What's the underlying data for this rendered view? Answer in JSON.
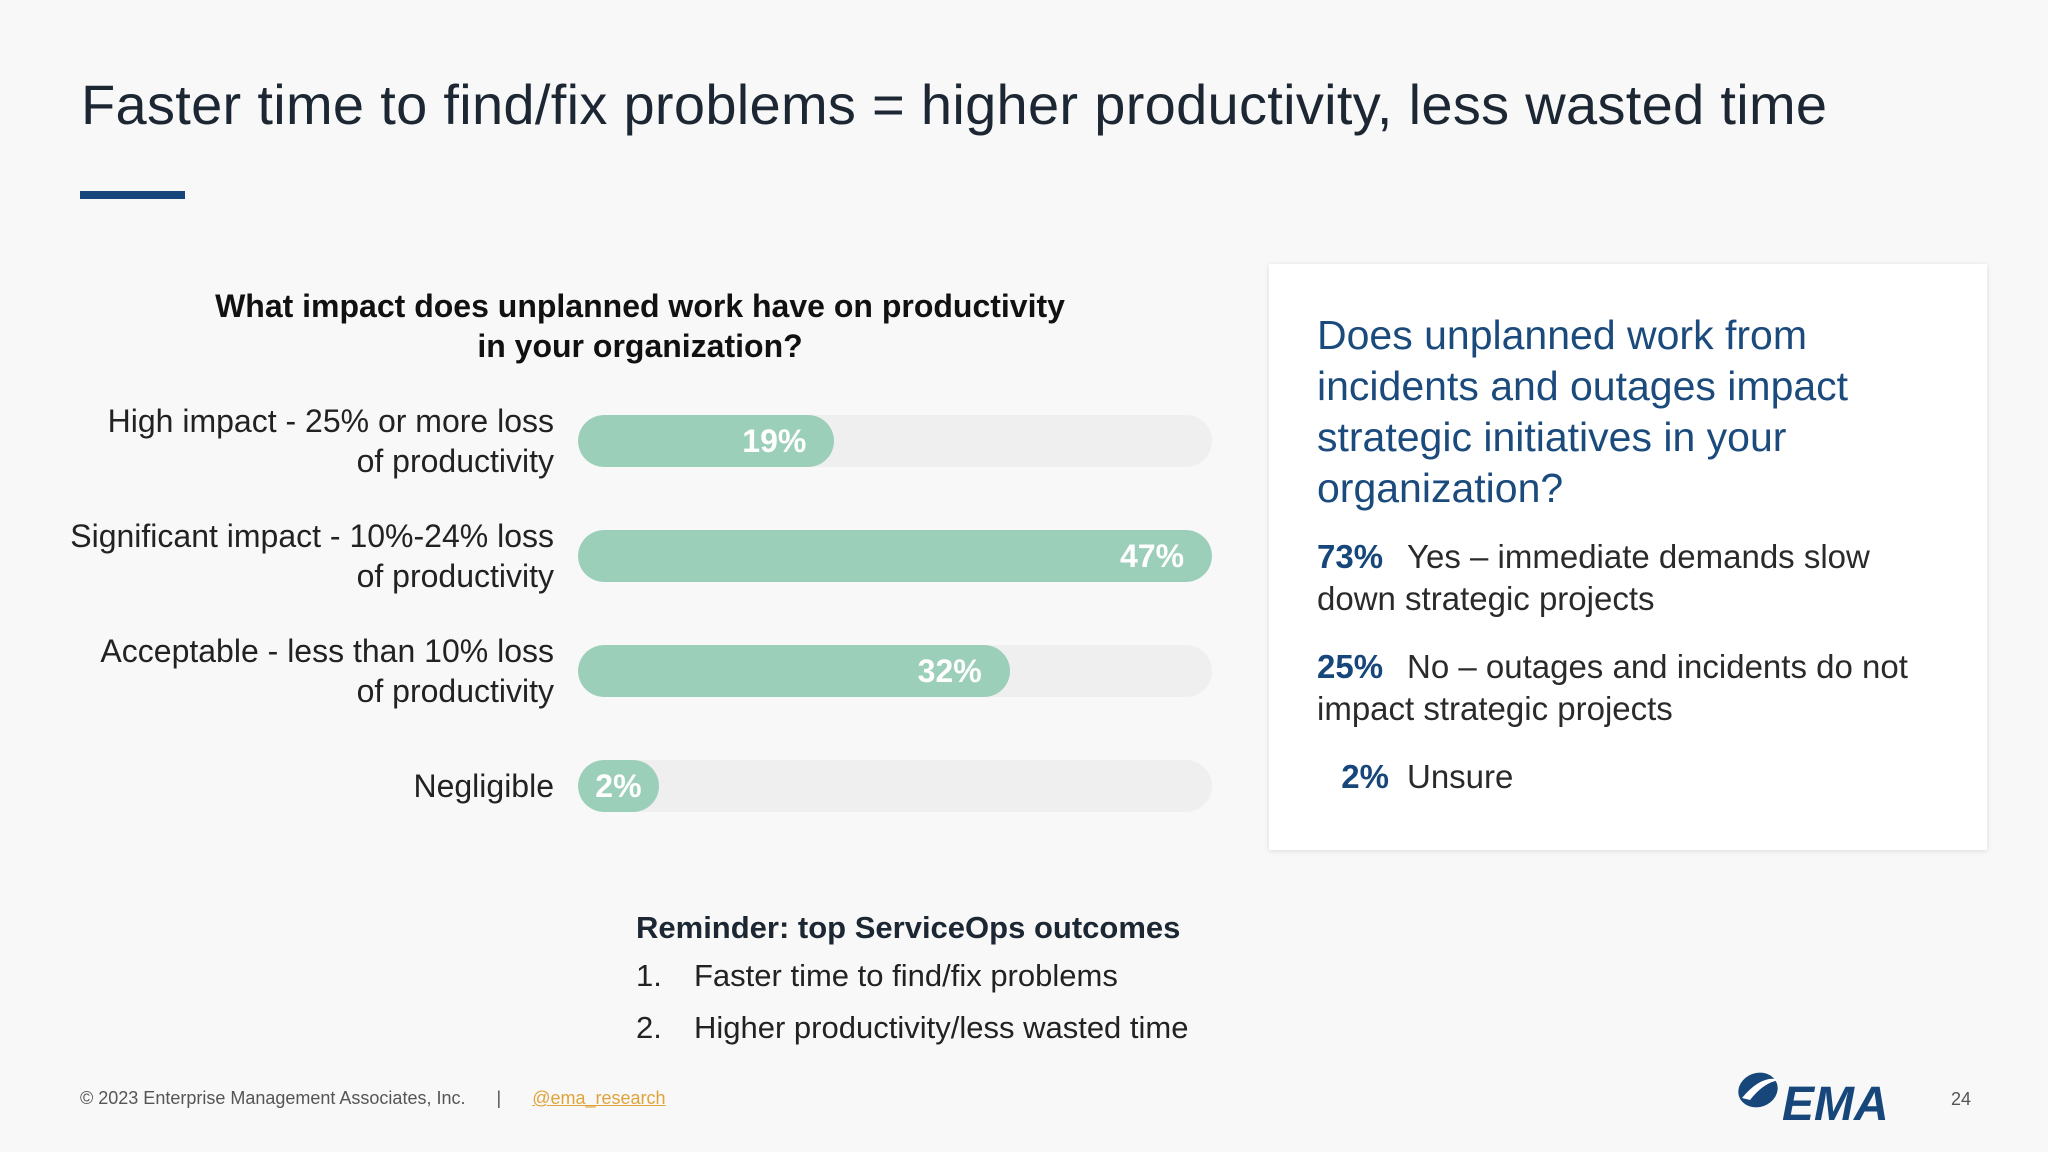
{
  "slide": {
    "title": "Faster time to find/fix problems = higher productivity, less wasted time"
  },
  "chart_data": {
    "type": "bar",
    "orientation": "horizontal",
    "title": "What impact does unplanned work have on productivity in your organization?",
    "title_lines": [
      "What impact does unplanned work have on productivity",
      "in your organization?"
    ],
    "categories": [
      [
        "High impact - 25% or more loss",
        "of productivity"
      ],
      [
        "Significant impact - 10%-24% loss",
        "of productivity"
      ],
      [
        "Acceptable - less than 10% loss",
        "of productivity"
      ],
      [
        "Negligible"
      ]
    ],
    "values": [
      19,
      47,
      32,
      2
    ],
    "value_labels": [
      "19%",
      "47%",
      "32%",
      "2%"
    ],
    "xlim": [
      0,
      47
    ],
    "grid": false,
    "bar_color": "#9ccfb9",
    "track_color": "#eeefee"
  },
  "reminder": {
    "title": "Reminder: top ServiceOps outcomes",
    "items": [
      {
        "num": "1.",
        "text": "Faster time to find/fix problems"
      },
      {
        "num": "2.",
        "text": "Higher productivity/less wasted time"
      }
    ]
  },
  "card": {
    "question": "Does unplanned work from incidents and outages impact strategic initiatives in your organization?",
    "answers": [
      {
        "pct": "73%",
        "text": "Yes – immediate demands slow down strategic projects"
      },
      {
        "pct": "25%",
        "text": "No – outages and incidents do not impact strategic projects"
      },
      {
        "pct": "2%",
        "text": "Unsure"
      }
    ]
  },
  "footer": {
    "copyright": "© 2023 Enterprise Management Associates, Inc.",
    "separator": "|",
    "link": "@ema_research",
    "page_number": "24"
  },
  "logo": {
    "text": "EMA",
    "icon": "ema-swoosh-icon",
    "color": "#16467a"
  }
}
